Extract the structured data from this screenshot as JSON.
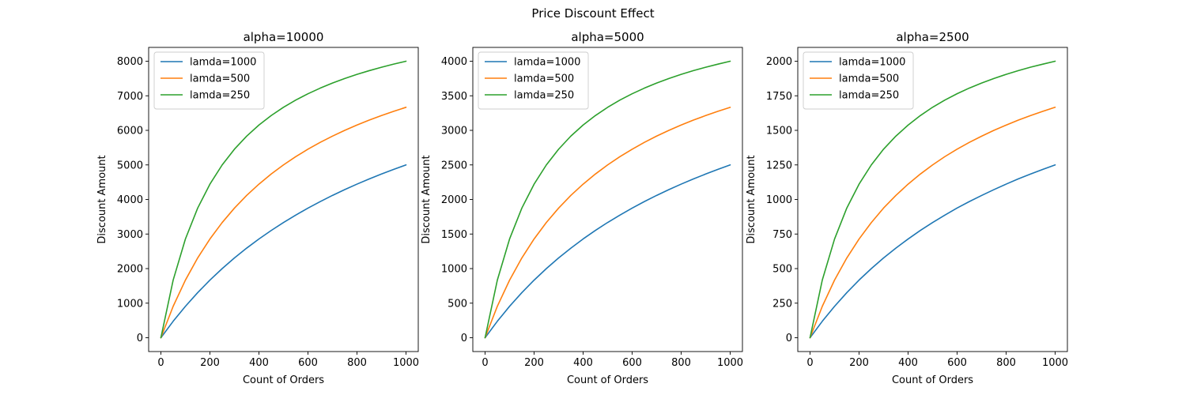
{
  "figure": {
    "suptitle": "Price Discount Effect"
  },
  "chart_data": [
    {
      "type": "line",
      "title": "alpha=10000",
      "xlabel": "Count of Orders",
      "ylabel": "Discount Amount",
      "xlim": [
        -50,
        1050
      ],
      "ylim": [
        -400,
        8400
      ],
      "xticks": [
        0,
        200,
        400,
        600,
        800,
        1000
      ],
      "yticks": [
        0,
        1000,
        2000,
        3000,
        4000,
        5000,
        6000,
        7000,
        8000
      ],
      "grid": false,
      "legend": "upper left",
      "x": [
        0,
        50,
        100,
        150,
        200,
        250,
        300,
        350,
        400,
        450,
        500,
        550,
        600,
        650,
        700,
        750,
        800,
        850,
        900,
        950,
        1000
      ],
      "series": [
        {
          "name": "lamda=1000",
          "color": "#1f77b4",
          "values": [
            0,
            476,
            909,
            1304,
            1667,
            2000,
            2308,
            2593,
            2857,
            3103,
            3333,
            3548,
            3750,
            3939,
            4118,
            4286,
            4444,
            4595,
            4737,
            4872,
            5000
          ]
        },
        {
          "name": "lamda=500",
          "color": "#ff7f0e",
          "values": [
            0,
            909,
            1667,
            2308,
            2857,
            3333,
            3750,
            4118,
            4444,
            4737,
            5000,
            5238,
            5455,
            5652,
            5833,
            6000,
            6154,
            6296,
            6429,
            6552,
            6667
          ]
        },
        {
          "name": "lamda=250",
          "color": "#2ca02c",
          "values": [
            0,
            1667,
            2857,
            3750,
            4444,
            5000,
            5455,
            5833,
            6154,
            6429,
            6667,
            6875,
            7059,
            7222,
            7368,
            7500,
            7619,
            7727,
            7826,
            7917,
            8000
          ]
        }
      ]
    },
    {
      "type": "line",
      "title": "alpha=5000",
      "xlabel": "Count of Orders",
      "ylabel": "Discount Amount",
      "xlim": [
        -50,
        1050
      ],
      "ylim": [
        -200,
        4200
      ],
      "xticks": [
        0,
        200,
        400,
        600,
        800,
        1000
      ],
      "yticks": [
        0,
        500,
        1000,
        1500,
        2000,
        2500,
        3000,
        3500,
        4000
      ],
      "grid": false,
      "legend": "upper left",
      "x": [
        0,
        50,
        100,
        150,
        200,
        250,
        300,
        350,
        400,
        450,
        500,
        550,
        600,
        650,
        700,
        750,
        800,
        850,
        900,
        950,
        1000
      ],
      "series": [
        {
          "name": "lamda=1000",
          "color": "#1f77b4",
          "values": [
            0,
            238,
            455,
            652,
            833,
            1000,
            1154,
            1296,
            1429,
            1552,
            1667,
            1774,
            1875,
            1970,
            2059,
            2143,
            2222,
            2297,
            2368,
            2436,
            2500
          ]
        },
        {
          "name": "lamda=500",
          "color": "#ff7f0e",
          "values": [
            0,
            455,
            833,
            1154,
            1429,
            1667,
            1875,
            2059,
            2222,
            2368,
            2500,
            2619,
            2727,
            2826,
            2917,
            3000,
            3077,
            3148,
            3214,
            3276,
            3333
          ]
        },
        {
          "name": "lamda=250",
          "color": "#2ca02c",
          "values": [
            0,
            833,
            1429,
            1875,
            2222,
            2500,
            2727,
            2917,
            3077,
            3214,
            3333,
            3438,
            3529,
            3611,
            3684,
            3750,
            3810,
            3864,
            3913,
            3958,
            4000
          ]
        }
      ]
    },
    {
      "type": "line",
      "title": "alpha=2500",
      "xlabel": "Count of Orders",
      "ylabel": "Discount Amount",
      "xlim": [
        -50,
        1050
      ],
      "ylim": [
        -100,
        2100
      ],
      "xticks": [
        0,
        200,
        400,
        600,
        800,
        1000
      ],
      "yticks": [
        0,
        250,
        500,
        750,
        1000,
        1250,
        1500,
        1750,
        2000
      ],
      "grid": false,
      "legend": "upper left",
      "x": [
        0,
        50,
        100,
        150,
        200,
        250,
        300,
        350,
        400,
        450,
        500,
        550,
        600,
        650,
        700,
        750,
        800,
        850,
        900,
        950,
        1000
      ],
      "series": [
        {
          "name": "lamda=1000",
          "color": "#1f77b4",
          "values": [
            0,
            119,
            227,
            326,
            417,
            500,
            577,
            648,
            714,
            776,
            833,
            887,
            938,
            985,
            1029,
            1071,
            1111,
            1149,
            1184,
            1218,
            1250
          ]
        },
        {
          "name": "lamda=500",
          "color": "#ff7f0e",
          "values": [
            0,
            227,
            417,
            577,
            714,
            833,
            938,
            1029,
            1111,
            1184,
            1250,
            1310,
            1364,
            1413,
            1458,
            1500,
            1538,
            1574,
            1607,
            1638,
            1667
          ]
        },
        {
          "name": "lamda=250",
          "color": "#2ca02c",
          "values": [
            0,
            417,
            714,
            938,
            1111,
            1250,
            1364,
            1458,
            1538,
            1607,
            1667,
            1719,
            1765,
            1806,
            1842,
            1875,
            1905,
            1932,
            1957,
            1979,
            2000
          ]
        }
      ]
    }
  ]
}
